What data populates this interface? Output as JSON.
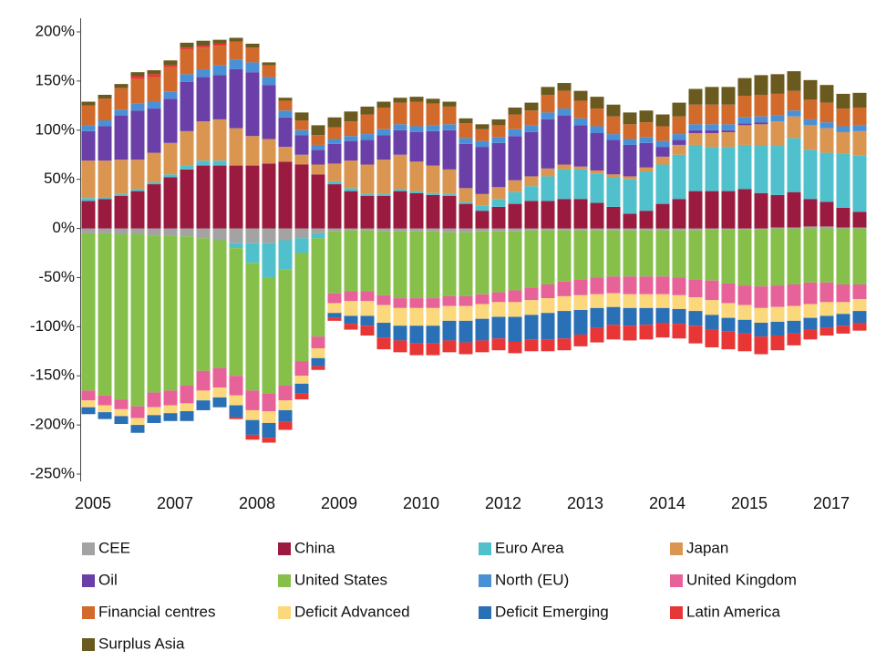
{
  "chart_data": {
    "type": "stacked_bar",
    "categories": [
      "2005",
      null,
      null,
      null,
      null,
      "2007",
      null,
      null,
      null,
      null,
      "2008",
      null,
      null,
      null,
      null,
      "2009",
      null,
      null,
      null,
      null,
      "2010",
      null,
      null,
      null,
      null,
      "2012",
      null,
      null,
      null,
      null,
      "2013",
      null,
      null,
      null,
      null,
      "2014",
      null,
      null,
      null,
      null,
      "2015",
      null,
      null,
      null,
      null,
      "2017",
      null,
      null
    ],
    "ylim": [
      -250,
      200
    ],
    "yticks": [
      {
        "value": 200,
        "label": "200%"
      },
      {
        "value": 150,
        "label": "150%"
      },
      {
        "value": 100,
        "label": "100%"
      },
      {
        "value": 50,
        "label": "50%"
      },
      {
        "value": 0,
        "label": "0%"
      },
      {
        "value": -50,
        "label": "-50%"
      },
      {
        "value": -100,
        "label": "-100%"
      },
      {
        "value": -150,
        "label": "-150%"
      },
      {
        "value": -200,
        "label": "-200%"
      },
      {
        "value": -250,
        "label": "-250%"
      }
    ],
    "grid": false,
    "series": [
      {
        "name": "CEE",
        "color": "#a3a3a3",
        "values": [
          -5,
          -5,
          -6,
          -6,
          -7,
          -7,
          -8,
          -10,
          -12,
          -15,
          -15,
          -15,
          -12,
          -10,
          -5,
          -3,
          -2,
          -2,
          -3,
          -3,
          -3,
          -3,
          -4,
          -4,
          -3,
          -3,
          -3,
          -2,
          -2,
          -2,
          -2,
          -2,
          -2,
          -2,
          -2,
          -2,
          -2,
          -2,
          -1,
          -1,
          -1,
          -1,
          1,
          1,
          2,
          2,
          1,
          1
        ]
      },
      {
        "name": "China",
        "color": "#9b1b40",
        "values": [
          28,
          30,
          33,
          38,
          45,
          52,
          60,
          64,
          64,
          64,
          64,
          66,
          68,
          65,
          55,
          45,
          38,
          33,
          33,
          38,
          36,
          34,
          33,
          25,
          18,
          22,
          25,
          28,
          28,
          30,
          30,
          26,
          22,
          15,
          18,
          25,
          30,
          38,
          38,
          38,
          40,
          36,
          33,
          36,
          28,
          25,
          20,
          16
        ]
      },
      {
        "name": "Euro Area",
        "color": "#4fc0cc",
        "values": [
          3,
          2,
          2,
          2,
          2,
          3,
          4,
          5,
          5,
          -5,
          -20,
          -35,
          -30,
          -15,
          -5,
          3,
          3,
          2,
          2,
          2,
          2,
          2,
          2,
          2,
          5,
          8,
          12,
          15,
          25,
          30,
          30,
          30,
          30,
          35,
          40,
          40,
          45,
          47,
          45,
          45,
          45,
          48,
          50,
          55,
          50,
          50,
          55,
          57
        ]
      },
      {
        "name": "Japan",
        "color": "#da9650",
        "values": [
          38,
          37,
          35,
          30,
          30,
          32,
          35,
          40,
          42,
          38,
          30,
          25,
          15,
          10,
          10,
          18,
          28,
          30,
          35,
          35,
          30,
          28,
          25,
          14,
          12,
          12,
          12,
          10,
          8,
          5,
          3,
          3,
          3,
          3,
          4,
          8,
          10,
          12,
          14,
          15,
          20,
          22,
          25,
          22,
          25,
          25,
          22,
          25
        ]
      },
      {
        "name": "Oil",
        "color": "#6a40a8",
        "values": [
          30,
          35,
          45,
          50,
          45,
          45,
          50,
          45,
          45,
          60,
          65,
          55,
          30,
          20,
          15,
          20,
          20,
          25,
          25,
          25,
          30,
          35,
          40,
          45,
          48,
          45,
          45,
          45,
          50,
          50,
          42,
          38,
          35,
          32,
          25,
          10,
          5,
          3,
          3,
          2,
          2,
          2,
          0,
          0,
          0,
          0,
          0,
          0
        ]
      },
      {
        "name": "United States",
        "color": "#86c04a",
        "values": [
          -160,
          -165,
          -168,
          -175,
          -160,
          -158,
          -152,
          -135,
          -130,
          -130,
          -130,
          -118,
          -118,
          -110,
          -100,
          -63,
          -62,
          -62,
          -65,
          -68,
          -68,
          -68,
          -65,
          -65,
          -64,
          -62,
          -60,
          -58,
          -55,
          -52,
          -50,
          -48,
          -47,
          -47,
          -47,
          -47,
          -48,
          -50,
          -52,
          -55,
          -57,
          -58,
          -58,
          -57,
          -55,
          -55,
          -57,
          -57
        ]
      },
      {
        "name": "North (EU)",
        "color": "#4a90d6",
        "values": [
          6,
          6,
          6,
          7,
          7,
          7,
          8,
          8,
          10,
          10,
          10,
          8,
          7,
          5,
          5,
          5,
          5,
          6,
          6,
          6,
          6,
          6,
          6,
          6,
          6,
          6,
          7,
          7,
          7,
          7,
          7,
          7,
          6,
          6,
          6,
          6,
          6,
          6,
          6,
          6,
          6,
          6,
          6,
          6,
          6,
          6,
          6,
          6
        ]
      },
      {
        "name": "United Kingdom",
        "color": "#e8629a",
        "values": [
          -10,
          -10,
          -10,
          -12,
          -15,
          -15,
          -18,
          -20,
          -20,
          -20,
          -20,
          -18,
          -15,
          -15,
          -12,
          -10,
          -10,
          -10,
          -10,
          -10,
          -10,
          -10,
          -10,
          -10,
          -10,
          -10,
          -12,
          -13,
          -14,
          -15,
          -16,
          -17,
          -17,
          -18,
          -18,
          -18,
          -18,
          -18,
          -20,
          -20,
          -20,
          -22,
          -22,
          -22,
          -22,
          -20,
          -18,
          -15
        ]
      },
      {
        "name": "Financial centres",
        "color": "#d26a2c",
        "values": [
          20,
          22,
          22,
          25,
          25,
          25,
          25,
          22,
          20,
          18,
          15,
          12,
          10,
          10,
          10,
          12,
          15,
          20,
          22,
          22,
          25,
          22,
          18,
          15,
          12,
          12,
          15,
          15,
          18,
          18,
          18,
          18,
          18,
          15,
          15,
          15,
          18,
          20,
          20,
          20,
          22,
          22,
          22,
          20,
          20,
          20,
          18,
          18
        ]
      },
      {
        "name": "Deficit Advanced",
        "color": "#fcd87c",
        "values": [
          -7,
          -7,
          -7,
          -7,
          -8,
          -8,
          -8,
          -10,
          -10,
          -10,
          -10,
          -12,
          -10,
          -8,
          -10,
          -10,
          -15,
          -15,
          -18,
          -18,
          -18,
          -18,
          -15,
          -15,
          -15,
          -15,
          -15,
          -15,
          -15,
          -15,
          -15,
          -14,
          -14,
          -14,
          -14,
          -14,
          -14,
          -14,
          -15,
          -15,
          -15,
          -15,
          -15,
          -15,
          -14,
          -14,
          -12,
          -12
        ]
      },
      {
        "name": "Deficit Emerging",
        "color": "#2a70b6",
        "values": [
          -7,
          -7,
          -8,
          -8,
          -8,
          -8,
          -10,
          -10,
          -10,
          -12,
          -15,
          -15,
          -12,
          -10,
          -8,
          -5,
          -8,
          -10,
          -15,
          -15,
          -18,
          -18,
          -20,
          -22,
          -22,
          -22,
          -25,
          -25,
          -27,
          -28,
          -25,
          -20,
          -18,
          -18,
          -17,
          -15,
          -15,
          -15,
          -15,
          -14,
          -14,
          -14,
          -14,
          -13,
          -12,
          -12,
          -12,
          -12
        ]
      },
      {
        "name": "Latin America",
        "color": "#e83636",
        "values": [
          0,
          0,
          0,
          3,
          3,
          2,
          2,
          2,
          2,
          -2,
          -5,
          -5,
          -8,
          -6,
          -4,
          -3,
          -6,
          -10,
          -12,
          -12,
          -12,
          -12,
          -12,
          -12,
          -12,
          -12,
          -12,
          -12,
          -12,
          -12,
          -12,
          -15,
          -15,
          -15,
          -15,
          -15,
          -15,
          -18,
          -18,
          -18,
          -18,
          -18,
          -15,
          -12,
          -10,
          -8,
          -8,
          -8
        ]
      },
      {
        "name": "Surplus Asia",
        "color": "#6b5a1f",
        "values": [
          4,
          4,
          4,
          4,
          4,
          5,
          5,
          5,
          4,
          4,
          4,
          3,
          3,
          8,
          10,
          10,
          10,
          8,
          6,
          5,
          5,
          5,
          5,
          5,
          5,
          6,
          7,
          8,
          8,
          8,
          10,
          12,
          12,
          12,
          12,
          12,
          14,
          16,
          18,
          18,
          18,
          20,
          20,
          20,
          20,
          18,
          15,
          15
        ]
      }
    ]
  }
}
